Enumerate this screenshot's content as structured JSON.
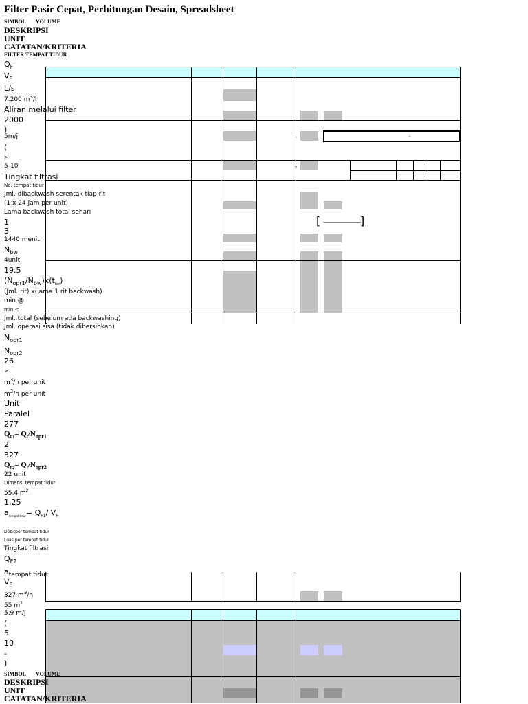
{
  "header": {
    "title": "Filter Pasir Cepat, Perhitungan Desain, Spreadsheet",
    "simbol": "SIMBOL",
    "volume": "VOLUME",
    "deskripsi": "DESKRIPSI",
    "unit": "UNIT",
    "catatan": "CATATAN/KRITERIA",
    "filter_bed": "FILTER  TEMPAT  TIDUR"
  },
  "lines": {
    "qf": "Q",
    "qf_sub": "F",
    "vf": "V",
    "vf_sub": "F",
    "ls": "L/s",
    "flow_m3h": "7.200 m",
    "flow_m3h_sup": "3",
    "flow_m3h_end": "/h",
    "aliran": "Aliran melalui filter",
    "v2000": "2000",
    "paren_close": ")",
    "v5mj": "5m/j",
    "paren_open": "(",
    "gt": ">",
    "range": "5-10",
    "tingkat": "Tingkat filtrasi",
    "no_tempat": "No. tempat tidur",
    "jml_backwash": "Jml. dibackwash serentak tiap rit",
    "one_x_24": "(1 x 24 jam per unit)",
    "lama_backwash": "Lama backwash total sehari",
    "one": "1",
    "three": "3",
    "menit1440": "1440    menit",
    "nbw": "N",
    "nbw_sub": "bw",
    "four_unit": "4unit",
    "v19_5": "19.5",
    "formula_nopr": "(N",
    "formula_nopr_sub": "opr1",
    "formula_nbw": "/N",
    "formula_nbw_sub": "bw",
    "formula_tbw": ")x(t",
    "formula_tbw_sub": "bw",
    "formula_end": ")",
    "jml_rit": "(Jml. rit) x(lama 1 rit backwash)",
    "min_at": "min  @",
    "min_lt": "min <",
    "jml_total": "Jml.  total  (sebelum  ada  backwashing)",
    "jml_operasi": "Jml. operasi sisa (tidak dibersihkan)",
    "nopr1": "N",
    "nopr1_sub": "opr1",
    "nopr2": "N",
    "nopr2_sub": "opr2",
    "v26": "26",
    "gt2": ">",
    "m3h_unit_a": "m",
    "m3h_unit_a_sup": "3",
    "m3h_unit_a_end": "/h per unit",
    "m3h_unit_b": "m",
    "m3h_unit_b_sup": "3",
    "m3h_unit_b_end": "/h per unit",
    "unit": "Unit",
    "paralel": "Paralel",
    "v277": "277",
    "qf1_formula": "Q",
    "qf1_formula_sub": "F1",
    "qf1_formula_mid": "= Q",
    "qf1_formula_mid_sub": "f",
    "qf1_formula_end": "/N",
    "qf1_formula_end_sub": "opr1",
    "v2": "2",
    "v327": "327",
    "qf2_formula": "Q",
    "qf2_formula_sub": "F2",
    "qf2_formula_mid": "= Q",
    "qf2_formula_mid_sub": "f",
    "qf2_formula_end": "/N",
    "qf2_formula_end_sub": "opr2",
    "v22_unit": "22 unit",
    "dimensi": "Dimensi tempat tidur",
    "v55_4": "55,4 m",
    "v55_4_sup": "2",
    "v1_25": "1,25",
    "a_formula": "a",
    "a_formula_sub": "tempat  tidur",
    "a_formula_mid": "=  Q",
    "a_formula_mid_sub": "F1",
    "a_formula_end": "/ V",
    "a_formula_end_sub": "F",
    "debit": "Debitper tempat tidur",
    "luas": "Luas per tempat tidur",
    "tingkat2": "Tingkat filtrasi",
    "qf2": "Q",
    "qf2_sub": "F2",
    "a_tt": "a",
    "a_tt_sub": "tempat tidur",
    "vf2": "V",
    "vf2_sub": "F",
    "v327_m3h": "327 m",
    "v327_m3h_sup": "3",
    "v327_m3h_end": "/h",
    "v55_m2": "55 m",
    "v55_m2_sup": "2",
    "v5_9": "5,9 m/j",
    "paren_open2": "(",
    "five": "5",
    "ten": "10",
    "dash": "-",
    "paren_close2": ")"
  },
  "footer": {
    "simbol": "SIMBOL",
    "volume": "VOLUME",
    "deskripsi": "DESKRIPSI",
    "unit": "UNIT",
    "catatan": "CATATAN/KRITERIA"
  },
  "dash_marks": [
    "-",
    "-",
    "-"
  ]
}
